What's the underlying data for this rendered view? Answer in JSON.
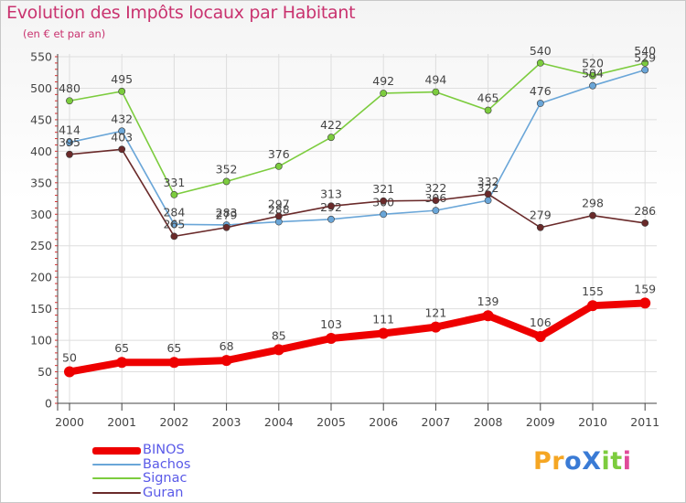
{
  "header": {
    "title": "Evolution des Impôts locaux par Habitant",
    "subtitle": "(en € et par an)"
  },
  "chart_data": {
    "type": "line",
    "title": "Evolution des Impôts locaux par Habitant",
    "subtitle": "(en € et par an)",
    "xlabel": "",
    "ylabel": "",
    "categories": [
      "2000",
      "2001",
      "2002",
      "2003",
      "2004",
      "2005",
      "2006",
      "2007",
      "2008",
      "2009",
      "2010",
      "2011"
    ],
    "ylim": [
      0,
      550
    ],
    "yticks": [
      "0",
      "50",
      "100",
      "150",
      "200",
      "250",
      "300",
      "350",
      "400",
      "450",
      "500",
      "550"
    ],
    "grid": true,
    "legend_position": "bottom-left",
    "series": [
      {
        "name": "Signac",
        "color": "#7ccc3e",
        "values": [
          480,
          495,
          331,
          352,
          376,
          422,
          492,
          494,
          465,
          540,
          520,
          540
        ],
        "labels": [
          "480",
          "495",
          "331",
          "352",
          "376",
          "422",
          "492",
          "494",
          "465",
          "540",
          "520",
          "540"
        ]
      },
      {
        "name": "Bachos",
        "color": "#6aa6d8",
        "values": [
          414,
          432,
          284,
          283,
          288,
          292,
          300,
          306,
          322,
          476,
          504,
          529
        ],
        "labels": [
          "414",
          "432",
          "284",
          "283",
          "288",
          "292",
          "300",
          "306",
          "322",
          "476",
          "504",
          "529"
        ]
      },
      {
        "name": "Guran",
        "color": "#6a2a2a",
        "values": [
          395,
          403,
          265,
          279,
          297,
          313,
          321,
          322,
          332,
          279,
          298,
          286
        ],
        "labels": [
          "395",
          "403",
          "265",
          "279",
          "297",
          "313",
          "321",
          "322",
          "332",
          "279",
          "298",
          "286"
        ]
      },
      {
        "name": "BINOS",
        "color": "#ee0000",
        "values": [
          50,
          65,
          65,
          68,
          85,
          103,
          111,
          121,
          139,
          106,
          155,
          159
        ],
        "labels": [
          "50",
          "65",
          "65",
          "68",
          "85",
          "103",
          "111",
          "121",
          "139",
          "106",
          "155",
          "159"
        ]
      }
    ]
  },
  "legend": {
    "items": [
      {
        "label": "BINOS",
        "color": "#ee0000"
      },
      {
        "label": "Bachos",
        "color": "#6aa6d8"
      },
      {
        "label": "Signac",
        "color": "#7ccc3e"
      },
      {
        "label": "Guran",
        "color": "#6a2a2a"
      }
    ]
  },
  "logo": {
    "text": "ProXiti",
    "letters": [
      "P",
      "r",
      "o",
      "X",
      "i",
      "t",
      "i"
    ],
    "colors": [
      "#f5a623",
      "#f5a623",
      "#3a7bd5",
      "#3a7bd5",
      "#7ccc3e",
      "#7ccc3e",
      "#e04b9a"
    ]
  }
}
